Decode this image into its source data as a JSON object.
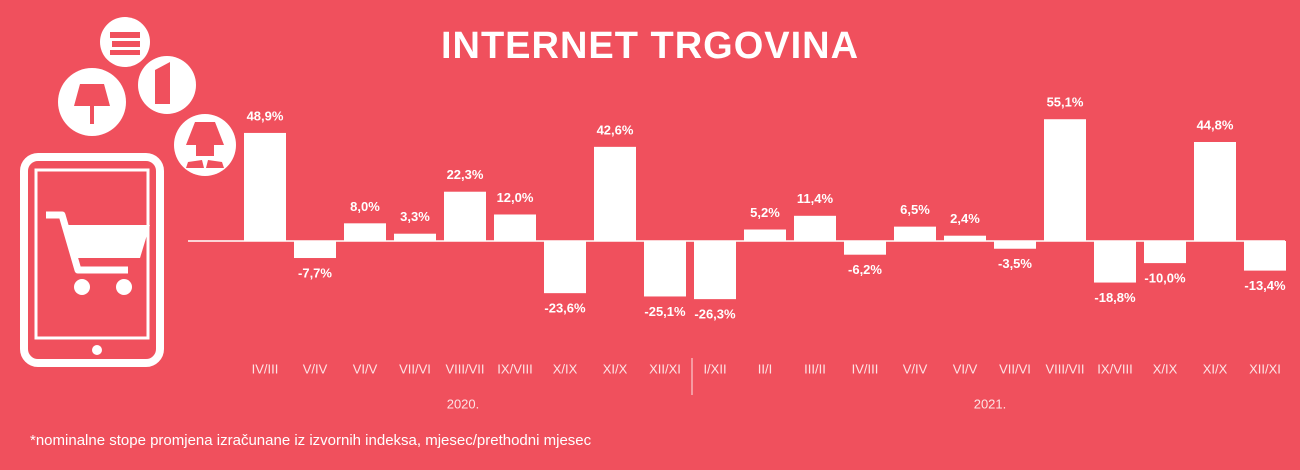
{
  "chart_data": {
    "type": "bar",
    "title": "INTERNET  TRGOVINA",
    "categories": [
      "IV/III",
      "V/IV",
      "VI/V",
      "VII/VI",
      "VIII/VII",
      "IX/VIII",
      "X/IX",
      "XI/X",
      "XII/XI",
      "I/XII",
      "II/I",
      "III/II",
      "IV/III",
      "V/IV",
      "VI/V",
      "VII/VI",
      "VIII/VII",
      "IX/VIII",
      "X/IX",
      "XI/X",
      "XII/XI"
    ],
    "series": [
      {
        "color": "#ffffff",
        "values": [
          48.9,
          -7.7,
          8.0,
          3.3,
          22.3,
          12.0,
          -23.6,
          42.6,
          -25.1,
          -26.3,
          5.2,
          11.4,
          -6.2,
          6.5,
          2.4,
          -3.5,
          55.1,
          -18.8,
          -10.0,
          44.8,
          -13.4
        ],
        "value_labels": [
          "48,9%",
          "-7,7%",
          "8,0%",
          "3,3%",
          "22,3%",
          "12,0%",
          "-23,6%",
          "42,6%",
          "-25,1%",
          "-26,3%",
          "5,2%",
          "11,4%",
          "-6,2%",
          "6,5%",
          "2,4%",
          "-3,5%",
          "55,1%",
          "-18,8%",
          "-10,0%",
          "44,8%",
          "-13,4%"
        ]
      }
    ],
    "years": [
      "2020.",
      "2021."
    ],
    "footnote": "*nominalne stope promjena izračunane iz izvornih indeksa, mjesec/prethodni mjesec"
  }
}
